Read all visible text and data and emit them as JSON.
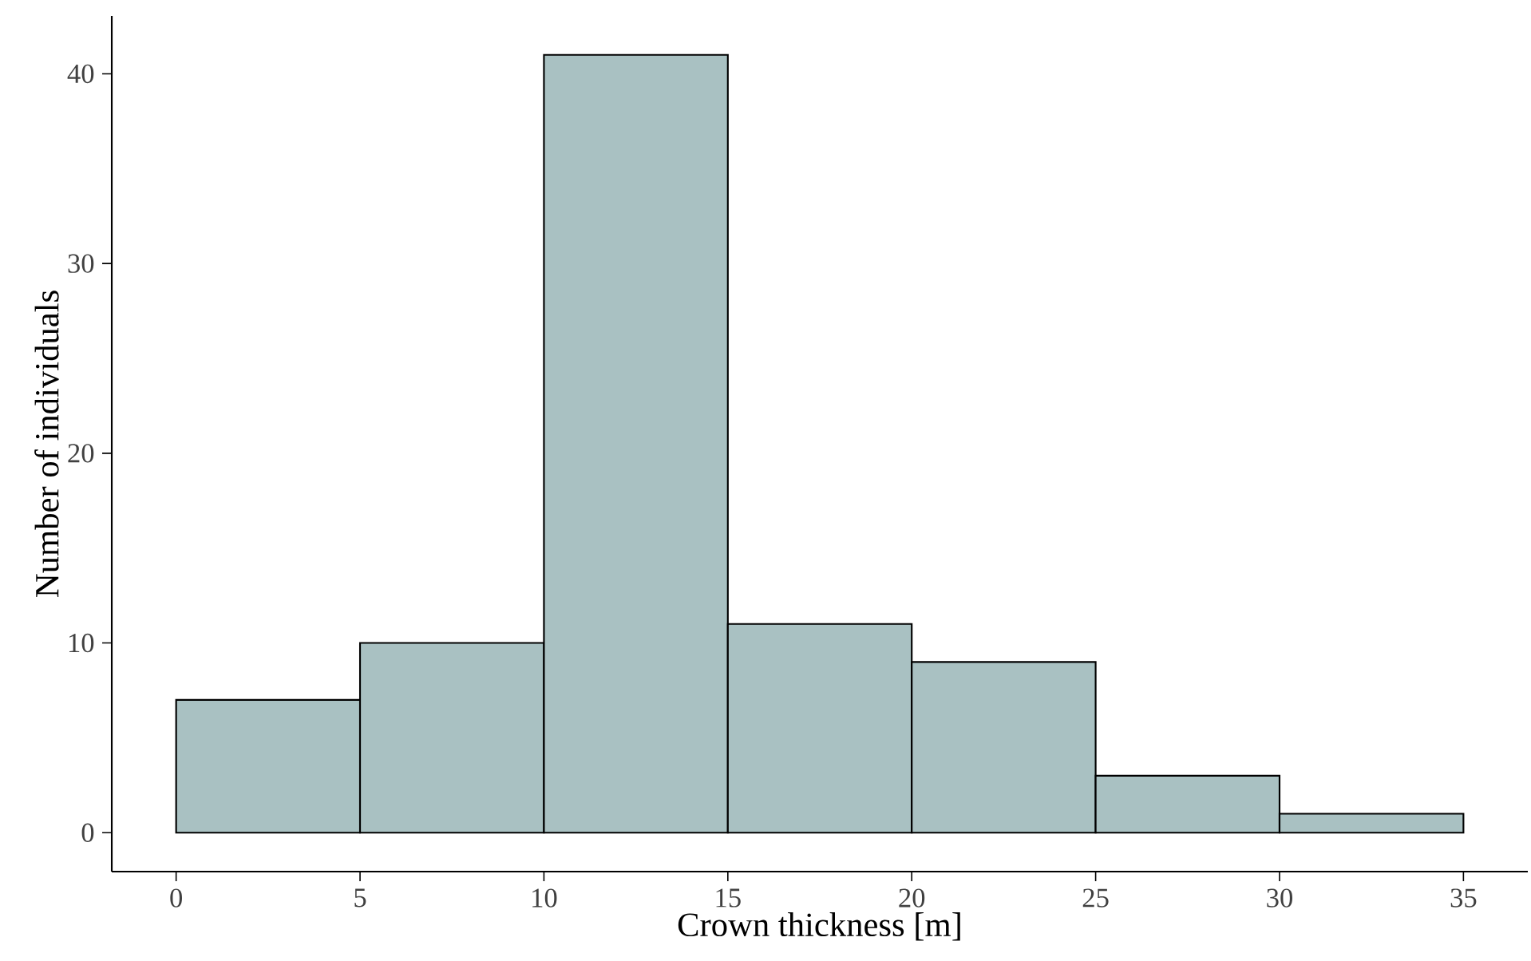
{
  "chart_data": {
    "type": "histogram",
    "xlabel": "Crown thickness [m]",
    "ylabel": "Number of individuals",
    "bins": [
      0,
      5,
      10,
      15,
      20,
      25,
      30,
      35
    ],
    "values": [
      7,
      10,
      41,
      11,
      9,
      3,
      1
    ],
    "color": "#a9c1c2",
    "xlim": [
      -1.75,
      36.75
    ],
    "ylim": [
      -2.05,
      43.05
    ],
    "xticks": [
      0,
      5,
      10,
      15,
      20,
      25,
      30,
      35
    ],
    "yticks": [
      0,
      10,
      20,
      30,
      40
    ],
    "grid": false
  }
}
